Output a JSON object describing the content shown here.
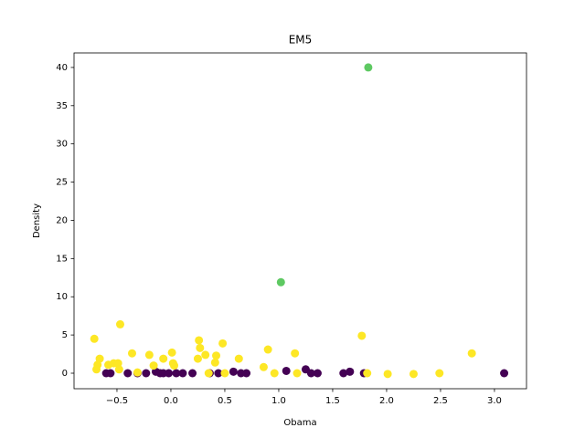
{
  "chart_data": {
    "type": "scatter",
    "title": "EM5",
    "x_label": "Obama",
    "y_label": "Density",
    "xlim": [
      -0.898,
      3.297
    ],
    "ylim": [
      -2.03,
      41.9
    ],
    "xticks": [
      {
        "value": -0.5,
        "label": "−0.5"
      },
      {
        "value": 0,
        "label": "0.0"
      },
      0.5,
      {
        "value": 1,
        "label": "1.0"
      },
      1.5,
      {
        "value": 2,
        "label": "2.0"
      },
      2.5,
      {
        "value": 3,
        "label": "3.0"
      }
    ],
    "yticks": [
      0,
      5,
      10,
      15,
      20,
      25,
      30,
      35,
      40
    ],
    "series": [
      {
        "color": "#440154",
        "x": [
          -0.6,
          -0.56,
          -0.4,
          -0.31,
          -0.23,
          -0.14,
          -0.1,
          -0.07,
          -0.02,
          0.05,
          0.11,
          0.2,
          0.36,
          0.44,
          0.58,
          0.65,
          0.7,
          1.07,
          1.25,
          1.3,
          1.36,
          1.6,
          1.66,
          1.79,
          3.09
        ],
        "values": [
          0,
          0,
          0,
          0,
          0,
          0.2,
          0,
          0,
          0,
          0,
          0,
          0,
          0,
          0,
          0.2,
          0,
          0,
          0.3,
          0.5,
          0,
          0,
          0,
          0.2,
          0,
          0
        ]
      },
      {
        "color": "#fde725",
        "x": [
          -0.71,
          -0.47,
          -0.66,
          -0.68,
          -0.69,
          -0.58,
          -0.53,
          -0.49,
          -0.48,
          -0.36,
          -0.31,
          -0.2,
          -0.16,
          -0.07,
          0.01,
          0.02,
          0.03,
          0.26,
          0.27,
          0.25,
          0.32,
          0.42,
          0.41,
          0.48,
          0.63,
          0.35,
          0.5,
          0.86,
          0.9,
          0.96,
          1.15,
          1.17,
          1.77,
          1.82,
          2.01,
          2.25,
          2.49,
          2.79
        ],
        "values": [
          4.5,
          6.4,
          1.9,
          1.1,
          0.5,
          1.1,
          1.3,
          1.3,
          0.5,
          2.6,
          0.1,
          2.4,
          1.0,
          1.9,
          2.7,
          1.3,
          1.0,
          4.3,
          3.3,
          1.9,
          2.4,
          2.3,
          1.4,
          3.9,
          1.9,
          0,
          0,
          0.8,
          3.1,
          0,
          2.6,
          0,
          4.9,
          0,
          -0.1,
          -0.1,
          0,
          2.6
        ]
      },
      {
        "color": "#5ec962",
        "x": [
          1.83,
          1.02
        ],
        "values": [
          40,
          11.9
        ]
      }
    ]
  }
}
